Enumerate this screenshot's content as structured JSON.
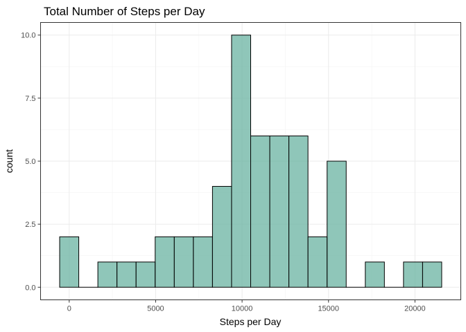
{
  "chart_data": {
    "type": "bar",
    "title": "Total Number of Steps per Day",
    "xlabel": "Steps per Day",
    "ylabel": "count",
    "bin_width": 1105,
    "bins": [
      {
        "x": 0,
        "count": 2
      },
      {
        "x": 1105,
        "count": 0
      },
      {
        "x": 2210,
        "count": 1
      },
      {
        "x": 3315,
        "count": 1
      },
      {
        "x": 4420,
        "count": 1
      },
      {
        "x": 5525,
        "count": 2
      },
      {
        "x": 6630,
        "count": 2
      },
      {
        "x": 7735,
        "count": 2
      },
      {
        "x": 8840,
        "count": 4
      },
      {
        "x": 9945,
        "count": 10
      },
      {
        "x": 11050,
        "count": 6
      },
      {
        "x": 12155,
        "count": 6
      },
      {
        "x": 13260,
        "count": 6
      },
      {
        "x": 14365,
        "count": 2
      },
      {
        "x": 15470,
        "count": 5
      },
      {
        "x": 16575,
        "count": 0
      },
      {
        "x": 17680,
        "count": 1
      },
      {
        "x": 18785,
        "count": 0
      },
      {
        "x": 19890,
        "count": 1
      },
      {
        "x": 20995,
        "count": 1
      }
    ],
    "xlim": [
      -1657,
      22652
    ],
    "ylim": [
      -0.5,
      10.5
    ],
    "x_ticks": [
      0,
      5000,
      10000,
      15000,
      20000
    ],
    "x_tick_labels": [
      "0",
      "5000",
      "10000",
      "15000",
      "20000"
    ],
    "y_ticks": [
      0,
      2.5,
      5,
      7.5,
      10
    ],
    "y_tick_labels": [
      "0.0",
      "2.5",
      "5.0",
      "7.5",
      "10.0"
    ],
    "bar_color": "#69b3a2",
    "bar_border_color": "#000000",
    "bar_opacity": 0.75,
    "grid": true,
    "legend": "none"
  }
}
